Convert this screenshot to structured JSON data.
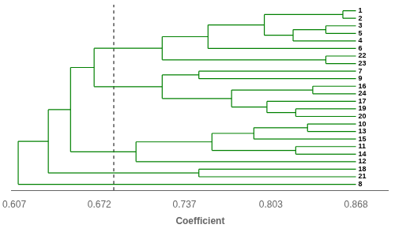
{
  "chart_data": {
    "type": "dendrogram",
    "xlabel": "Coefficient",
    "xlim": [
      0.605,
      0.893
    ],
    "xticks": [
      0.607,
      0.672,
      0.737,
      0.803,
      0.868
    ],
    "tick_labels": "x",
    "grid": false,
    "color": "#008000",
    "leaf_x": 0.868,
    "labels": [
      "1",
      "2",
      "3",
      "5",
      "4",
      "6",
      "22",
      "23",
      "7",
      "9",
      "16",
      "24",
      "17",
      "19",
      "20",
      "10",
      "13",
      "15",
      "11",
      "14",
      "12",
      "18",
      "21",
      "8"
    ],
    "reference_lines": [
      {
        "x": 0.683,
        "line_style": "dashed",
        "color": "#000000"
      }
    ],
    "tree": {
      "type": "node",
      "x": 0.61,
      "children": [
        {
          "type": "node",
          "x": 0.633,
          "children": [
            {
              "type": "node",
              "x": 0.65,
              "children": [
                {
                  "type": "node",
                  "x": 0.668,
                  "children": [
                    {
                      "type": "node",
                      "x": 0.72,
                      "children": [
                        {
                          "type": "node",
                          "x": 0.755,
                          "children": [
                            {
                              "type": "node",
                              "x": 0.798,
                              "children": [
                                {
                                  "type": "node",
                                  "x": 0.858,
                                  "children": [
                                    {
                                      "type": "leaf",
                                      "label": "1"
                                    },
                                    {
                                      "type": "leaf",
                                      "label": "2"
                                    }
                                  ]
                                },
                                {
                                  "type": "node",
                                  "x": 0.82,
                                  "children": [
                                    {
                                      "type": "node",
                                      "x": 0.845,
                                      "children": [
                                        {
                                          "type": "leaf",
                                          "label": "3"
                                        },
                                        {
                                          "type": "leaf",
                                          "label": "5"
                                        }
                                      ]
                                    },
                                    {
                                      "type": "leaf",
                                      "label": "4"
                                    }
                                  ]
                                }
                              ]
                            },
                            {
                              "type": "leaf",
                              "label": "6"
                            }
                          ]
                        },
                        {
                          "type": "node",
                          "x": 0.845,
                          "children": [
                            {
                              "type": "leaf",
                              "label": "22"
                            },
                            {
                              "type": "leaf",
                              "label": "23"
                            }
                          ]
                        }
                      ]
                    },
                    {
                      "type": "node",
                      "x": 0.72,
                      "children": [
                        {
                          "type": "node",
                          "x": 0.748,
                          "children": [
                            {
                              "type": "leaf",
                              "label": "7"
                            },
                            {
                              "type": "leaf",
                              "label": "9"
                            }
                          ]
                        },
                        {
                          "type": "node",
                          "x": 0.773,
                          "children": [
                            {
                              "type": "node",
                              "x": 0.835,
                              "children": [
                                {
                                  "type": "leaf",
                                  "label": "16"
                                },
                                {
                                  "type": "leaf",
                                  "label": "24"
                                }
                              ]
                            },
                            {
                              "type": "node",
                              "x": 0.8,
                              "children": [
                                {
                                  "type": "leaf",
                                  "label": "17"
                                },
                                {
                                  "type": "node",
                                  "x": 0.822,
                                  "children": [
                                    {
                                      "type": "leaf",
                                      "label": "19"
                                    },
                                    {
                                      "type": "leaf",
                                      "label": "20"
                                    }
                                  ]
                                }
                              ]
                            }
                          ]
                        }
                      ]
                    }
                  ]
                },
                {
                  "type": "node",
                  "x": 0.7,
                  "children": [
                    {
                      "type": "node",
                      "x": 0.758,
                      "children": [
                        {
                          "type": "node",
                          "x": 0.79,
                          "children": [
                            {
                              "type": "node",
                              "x": 0.831,
                              "children": [
                                {
                                  "type": "leaf",
                                  "label": "10"
                                },
                                {
                                  "type": "leaf",
                                  "label": "13"
                                }
                              ]
                            },
                            {
                              "type": "leaf",
                              "label": "15"
                            }
                          ]
                        },
                        {
                          "type": "node",
                          "x": 0.822,
                          "children": [
                            {
                              "type": "leaf",
                              "label": "11"
                            },
                            {
                              "type": "leaf",
                              "label": "14"
                            }
                          ]
                        }
                      ]
                    },
                    {
                      "type": "leaf",
                      "label": "12"
                    }
                  ]
                }
              ]
            },
            {
              "type": "node",
              "x": 0.748,
              "children": [
                {
                  "type": "leaf",
                  "label": "18"
                },
                {
                  "type": "leaf",
                  "label": "21"
                }
              ]
            }
          ]
        },
        {
          "type": "leaf",
          "label": "8"
        }
      ]
    }
  }
}
